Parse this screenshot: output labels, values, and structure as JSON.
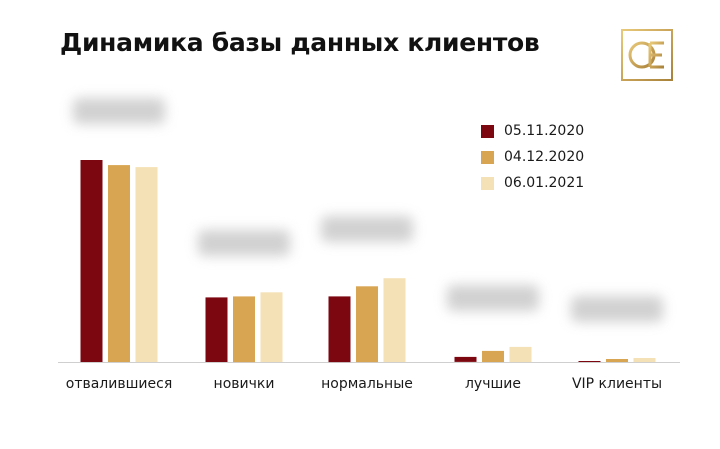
{
  "title": "Динамика базы данных клиентов",
  "logo": {
    "icon": "oe-monogram-logo",
    "color": "#c9a458"
  },
  "colors": {
    "series1": "#7d0710",
    "series2": "#d8a552",
    "series3": "#f5e1b6",
    "axis": "#cfcfcf"
  },
  "chart_data": {
    "type": "bar",
    "title": "Динамика базы данных клиентов",
    "categories": [
      "отвалившиеся",
      "новички",
      "нормальные",
      "лучшие",
      "VIP клиенты"
    ],
    "series": [
      {
        "name": "05.11.2020",
        "values": [
          200,
          64,
          65,
          5,
          1
        ]
      },
      {
        "name": "04.12.2020",
        "values": [
          195,
          65,
          75,
          11,
          3
        ]
      },
      {
        "name": "06.01.2021",
        "values": [
          193,
          69,
          83,
          15,
          4
        ]
      }
    ],
    "ylim": [
      0,
      210
    ],
    "grid": false,
    "legend_position": "top-right",
    "data_labels": "blurred"
  }
}
